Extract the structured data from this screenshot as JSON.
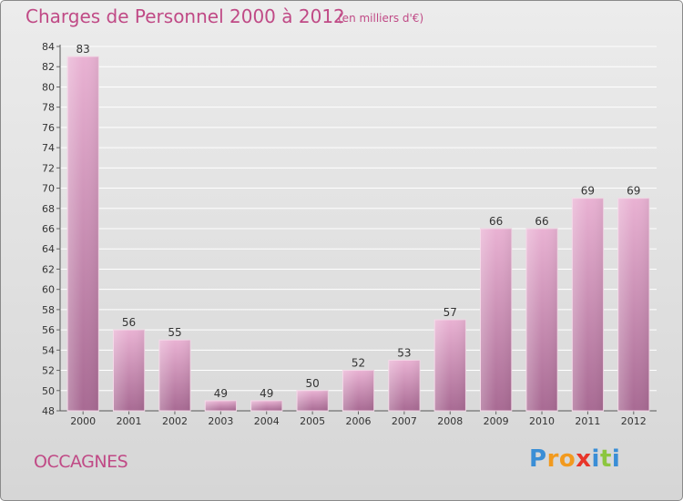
{
  "header": {
    "title": "Charges de Personnel 2000 à 2012",
    "subtitle": "(en milliers d'€)"
  },
  "footer": {
    "commune": "OCCAGNES",
    "logo_text": "Proxiti",
    "logo_letters": [
      "P",
      "r",
      "o",
      "x",
      "i",
      "t",
      "i"
    ],
    "logo_colors": [
      "#3a8ed6",
      "#f29a1e",
      "#f29a1e",
      "#e8352a",
      "#3a8ed6",
      "#8cc63f",
      "#3a8ed6"
    ]
  },
  "colors": {
    "bar_light": "#e9b2d3",
    "bar_dark": "#a86a93",
    "title": "#c04a86"
  },
  "chart_data": {
    "type": "bar",
    "title": "Charges de Personnel 2000 à 2012",
    "subtitle": "(en milliers d'€)",
    "categories": [
      "2000",
      "2001",
      "2002",
      "2003",
      "2004",
      "2005",
      "2006",
      "2007",
      "2008",
      "2009",
      "2010",
      "2011",
      "2012"
    ],
    "values": [
      83,
      56,
      55,
      49,
      49,
      50,
      52,
      53,
      57,
      66,
      66,
      69,
      69
    ],
    "ylim": [
      48,
      84
    ],
    "yticks": [
      48,
      50,
      52,
      54,
      56,
      58,
      60,
      62,
      64,
      66,
      68,
      70,
      72,
      74,
      76,
      78,
      80,
      82,
      84
    ],
    "grid": true,
    "xlabel": "",
    "ylabel": ""
  }
}
